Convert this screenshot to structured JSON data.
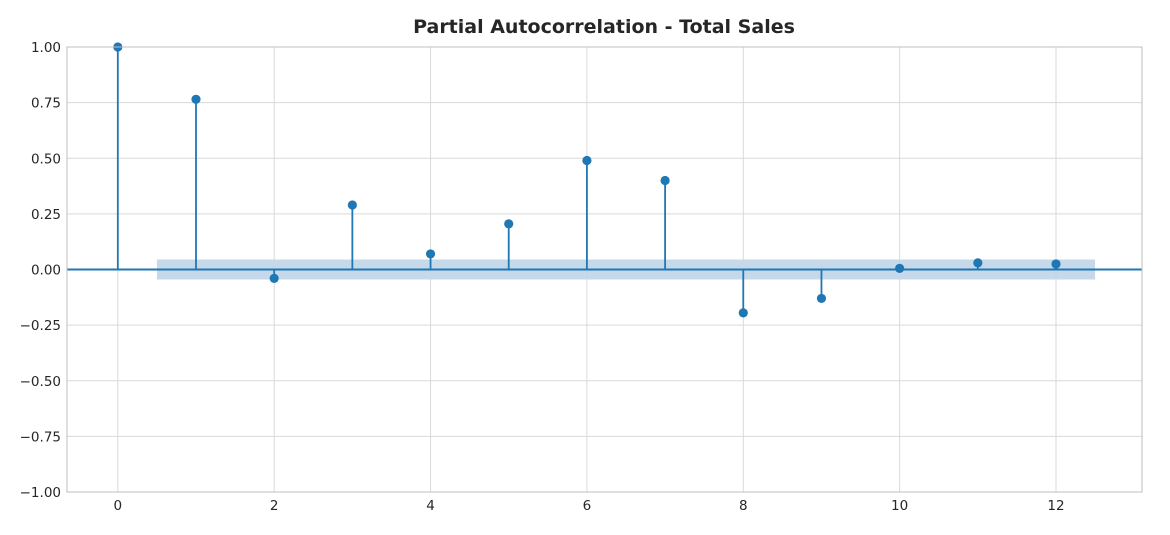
{
  "chart_data": {
    "type": "stem",
    "title": "Partial Autocorrelation - Total Sales",
    "xlabel": "",
    "ylabel": "",
    "xlim": [
      -0.65,
      13.1
    ],
    "ylim": [
      -1.0,
      1.0
    ],
    "x_ticks": [
      0,
      2,
      4,
      6,
      8,
      10,
      12
    ],
    "y_ticks": [
      1.0,
      0.75,
      0.5,
      0.25,
      0.0,
      -0.25,
      -0.5,
      -0.75,
      -1.0
    ],
    "x_tick_labels": [
      "0",
      "2",
      "4",
      "6",
      "8",
      "10",
      "12"
    ],
    "y_tick_labels": [
      "1.00",
      "0.75",
      "0.50",
      "0.25",
      "0.00",
      "−0.25",
      "−0.50",
      "−0.75",
      "−1.00"
    ],
    "grid": true,
    "lags": [
      0,
      1,
      2,
      3,
      4,
      5,
      6,
      7,
      8,
      9,
      10,
      11,
      12
    ],
    "values": [
      1.0,
      0.765,
      -0.04,
      0.29,
      0.07,
      0.205,
      0.49,
      0.4,
      -0.195,
      -0.13,
      0.005,
      0.03,
      0.025
    ],
    "confidence_band": {
      "x_range": [
        0.5,
        12.5
      ],
      "lower": -0.045,
      "upper": 0.045
    },
    "colors": {
      "stem": "#1f77b4",
      "band": "#c2d7ea",
      "grid": "#d9d9d9",
      "axis": "#bfbfbf",
      "text": "#262626"
    }
  }
}
